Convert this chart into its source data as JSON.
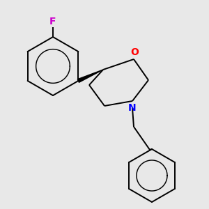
{
  "background_color": "#e8e8e8",
  "bond_color": "#000000",
  "O_color": "#ff0000",
  "N_color": "#0000ff",
  "F_color": "#cc00cc",
  "line_width": 1.4,
  "figsize": [
    3.0,
    3.0
  ],
  "dpi": 100,
  "xlim": [
    0,
    300
  ],
  "ylim": [
    0,
    300
  ]
}
